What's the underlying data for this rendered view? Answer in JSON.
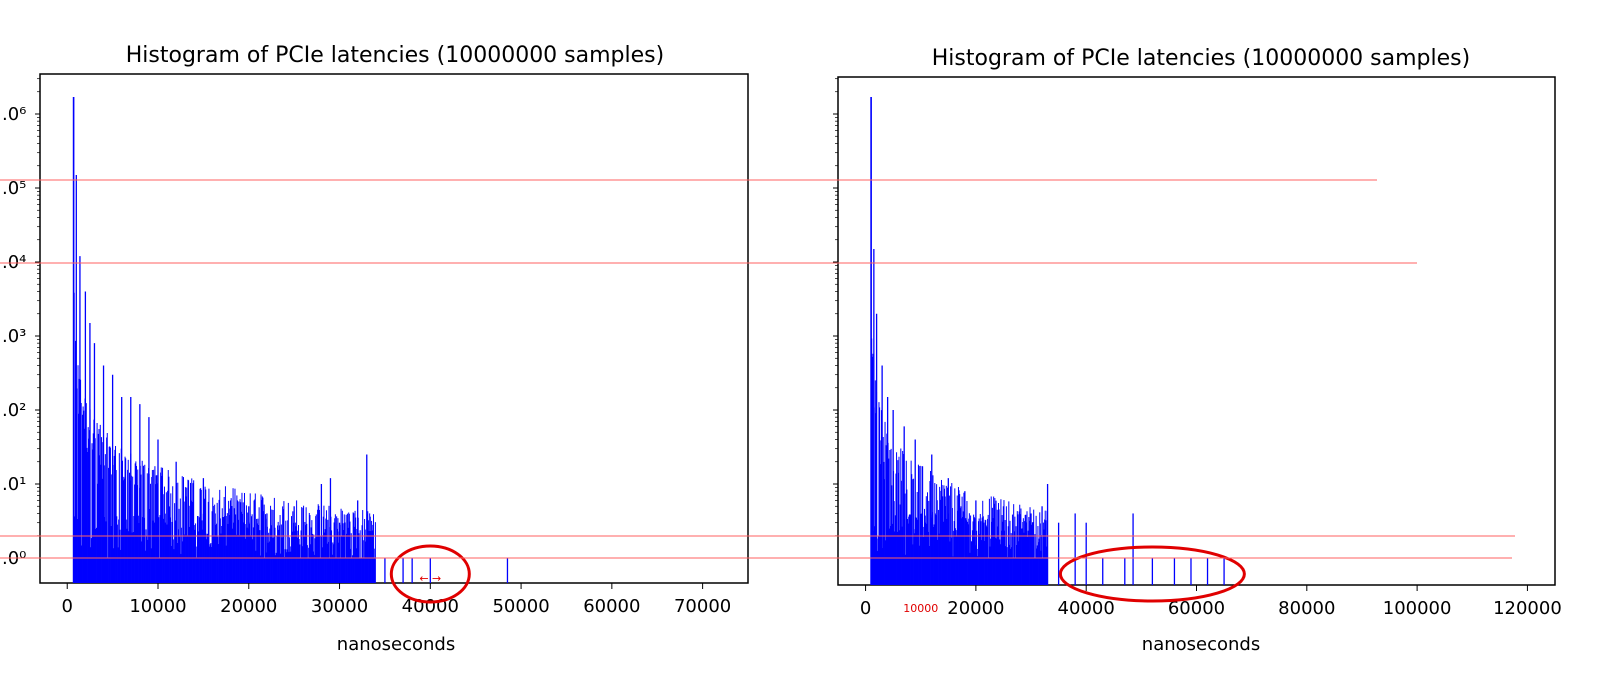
{
  "chart_data": [
    {
      "type": "bar",
      "title": "Histogram of PCIe latencies (10000000 samples)",
      "xlabel": "nanoseconds",
      "ylabel": "",
      "yscale": "log",
      "xlim": [
        -3000,
        75000
      ],
      "xticks": [
        0,
        10000,
        20000,
        30000,
        40000,
        50000,
        60000,
        70000
      ],
      "xtick_labels": [
        "0",
        "10000",
        "20000",
        "30000",
        "40000",
        "50000",
        "60000",
        "70000"
      ],
      "ytick_labels": [
        ".0⁶",
        ".0⁵",
        ".0⁴",
        ".0³",
        ".0²",
        ".0¹",
        ".0⁰"
      ],
      "color": "#0000ff",
      "peak": {
        "x": 700,
        "count": 1700000
      },
      "x": [
        700,
        1000,
        1400,
        2000,
        2500,
        3000,
        4000,
        5000,
        6000,
        7000,
        8000,
        9000,
        10000,
        12000,
        15000,
        18000,
        20000,
        22000,
        25000,
        28000,
        29000,
        30000,
        32000,
        33000,
        35000,
        37000,
        38000,
        40000,
        48500
      ],
      "values": [
        1700000,
        150000,
        12000,
        4000,
        1500,
        800,
        400,
        300,
        150,
        150,
        120,
        80,
        40,
        20,
        12,
        6,
        5,
        4,
        5,
        10,
        12,
        3,
        6,
        25,
        1,
        1,
        1,
        1,
        1
      ],
      "annotations": [
        {
          "shape": "ellipse",
          "x": 40000,
          "count": 1
        },
        {
          "text": "← →",
          "x": 40000,
          "count": 1
        }
      ]
    },
    {
      "type": "bar",
      "title": "Histogram of PCIe latencies (10000000 samples)",
      "xlabel": "nanoseconds",
      "ylabel": "",
      "yscale": "log",
      "xlim": [
        -5000,
        125000
      ],
      "xticks": [
        0,
        20000,
        40000,
        60000,
        80000,
        100000,
        120000
      ],
      "xtick_labels": [
        "0",
        "20000",
        "40000",
        "60000",
        "80000",
        "100000",
        "120000"
      ],
      "color": "#0000ff",
      "peak": {
        "x": 1000,
        "count": 1700000
      },
      "x": [
        1000,
        1500,
        2000,
        3000,
        4000,
        5000,
        7000,
        9000,
        12000,
        15000,
        18000,
        20000,
        25000,
        30000,
        32000,
        33000,
        35000,
        38000,
        40000,
        43000,
        47000,
        48500,
        52000,
        56000,
        59000,
        62000,
        65000
      ],
      "values": [
        1700000,
        15000,
        2000,
        400,
        150,
        100,
        60,
        40,
        25,
        12,
        8,
        6,
        5,
        4,
        5,
        10,
        3,
        4,
        3,
        1,
        1,
        4,
        1,
        1,
        1,
        1,
        1
      ],
      "annotations": [
        {
          "shape": "ellipse",
          "x": 52000,
          "count": 1
        },
        {
          "text": "10000",
          "x": 10000
        }
      ]
    }
  ],
  "reference_lines_color": "#ff6060",
  "annotation_color": "#e00000"
}
